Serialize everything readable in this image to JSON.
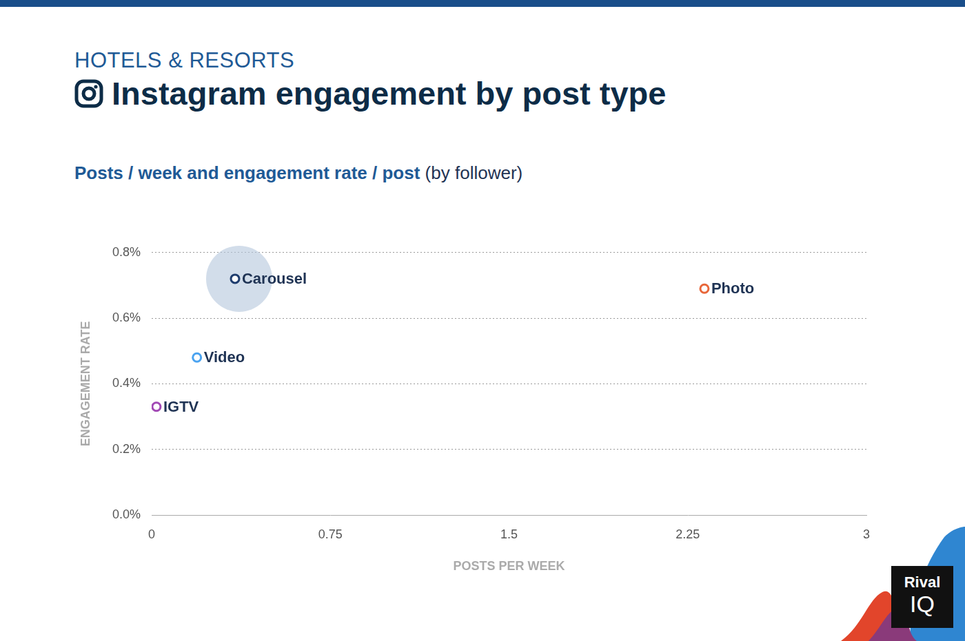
{
  "chart_data": {
    "type": "scatter",
    "header": "HOTELS & RESORTS",
    "title": "Instagram engagement by post type",
    "subtitle": "Posts / week and engagement rate / post",
    "subtitle_note": "(by follower)",
    "x_label": "POSTS PER WEEK",
    "y_label": "ENGAGEMENT RATE",
    "series": [
      {
        "name": "Carousel",
        "color": "#1f3d6e",
        "x": [
          0.35
        ],
        "values": [
          0.72
        ]
      },
      {
        "name": "Photo",
        "color": "#e8673a",
        "x": [
          2.32
        ],
        "values": [
          0.69
        ]
      },
      {
        "name": "Video",
        "color": "#4aa3f0",
        "x": [
          0.19
        ],
        "values": [
          0.48
        ]
      },
      {
        "name": "IGTV",
        "color": "#a24ab5",
        "x": [
          0.02
        ],
        "values": [
          0.33
        ]
      }
    ],
    "xlim": [
      0,
      3
    ],
    "xticks": [
      0,
      0.75,
      1.5,
      2.25,
      3
    ],
    "ylim": [
      0,
      0.8
    ],
    "yticks": [
      {
        "value": 0,
        "label": "0.0%"
      },
      {
        "value": 0.2,
        "label": "0.2%"
      },
      {
        "value": 0.4,
        "label": "0.4%"
      },
      {
        "value": 0.6,
        "label": "0.6%"
      },
      {
        "value": 0.8,
        "label": "0.8%"
      }
    ],
    "grid": true,
    "logo": [
      "Rival",
      "IQ"
    ]
  }
}
